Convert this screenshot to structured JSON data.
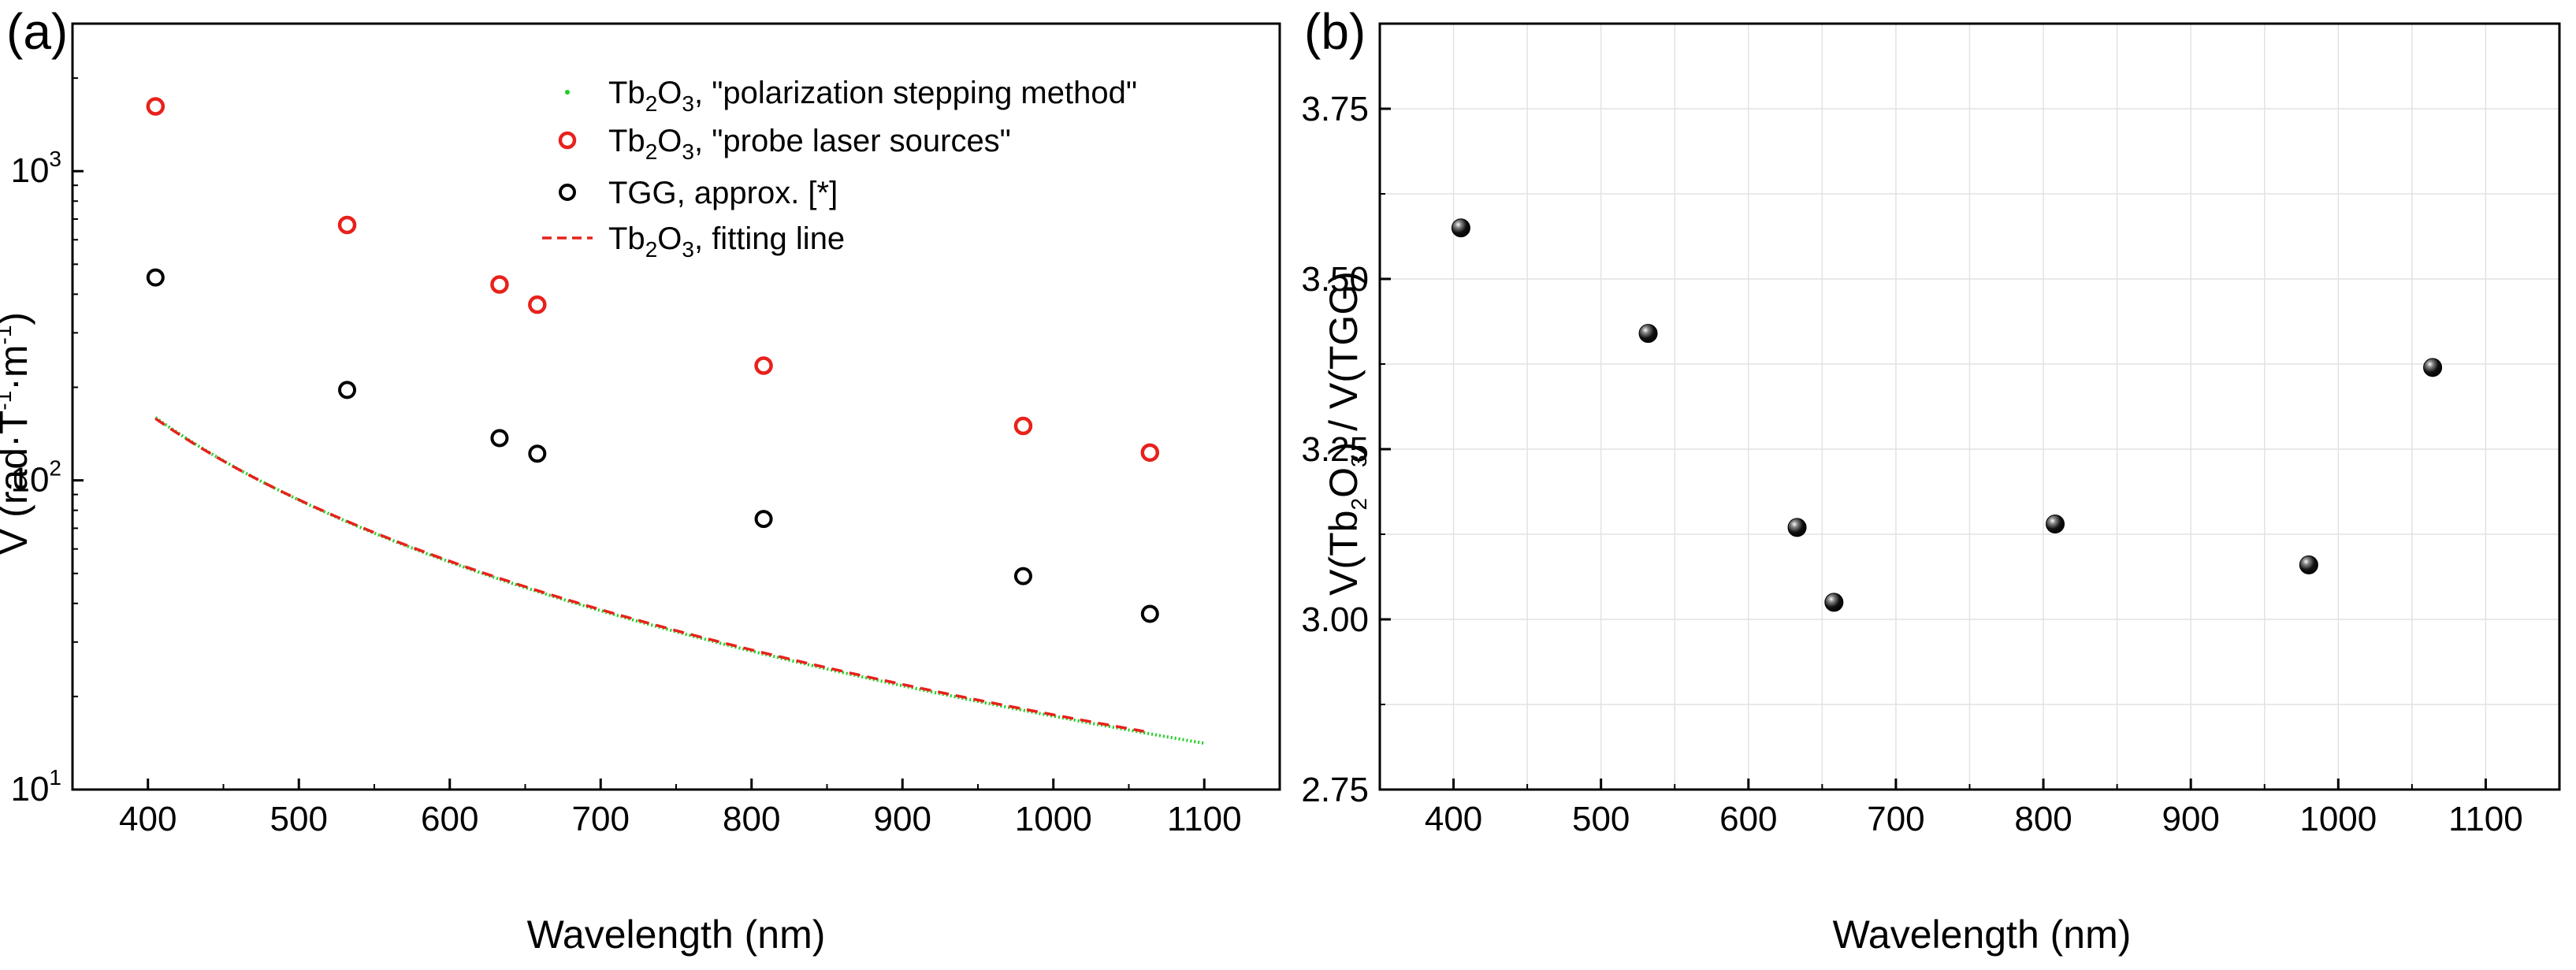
{
  "chart_data": [
    {
      "panel_label": "(a)",
      "type": "scatter",
      "xlabel": "Wavelength (nm)",
      "ylabel": {
        "main": "V (rad·T",
        "sup1": "-1",
        "mid": "·m",
        "sup2": "-1",
        "close": ")"
      },
      "xlim": [
        350,
        1150
      ],
      "xticks": [
        400,
        500,
        600,
        700,
        800,
        900,
        1000,
        1100
      ],
      "ylim": [
        10,
        3000
      ],
      "yscale": "log",
      "yticks": [
        {
          "v": 10,
          "base": "10",
          "exp": "1"
        },
        {
          "v": 100,
          "base": "10",
          "exp": "2"
        },
        {
          "v": 1000,
          "base": "10",
          "exp": "3"
        }
      ],
      "grid": false,
      "legend_position": "top-right",
      "series": [
        {
          "name": "Tb2O3, \"polarization stepping method\"",
          "label": {
            "pre": "Tb",
            "s1": "2",
            "mid": "O",
            "s2": "3",
            "post": ", \"polarization stepping method\""
          },
          "style": "green-dots",
          "color": "#22cc22",
          "curve": {
            "A": 16200000.0,
            "lambda0": 250,
            "x_from": 405,
            "x_to": 1100
          }
        },
        {
          "name": "Tb2O3, \"probe laser sources\"",
          "label": {
            "pre": "Tb",
            "s1": "2",
            "mid": "O",
            "s2": "3",
            "post": ", \"probe laser sources\""
          },
          "style": "open-circle",
          "color": "#e8211b",
          "x": [
            405,
            532,
            633,
            658,
            808,
            980,
            1064
          ],
          "y": [
            1620,
            670,
            430,
            370,
            235,
            150,
            123
          ]
        },
        {
          "name": "TGG, approx. [*]",
          "label": {
            "pre": "TGG, approx. [*]",
            "s1": "",
            "mid": "",
            "s2": "",
            "post": ""
          },
          "style": "open-circle",
          "color": "#000000",
          "x": [
            405,
            532,
            633,
            658,
            808,
            980,
            1064
          ],
          "y": [
            453,
            196,
            137,
            122,
            75,
            49,
            37
          ]
        },
        {
          "name": "Tb2O3, fitting line",
          "label": {
            "pre": "Tb",
            "s1": "2",
            "mid": "O",
            "s2": "3",
            "post": ", fitting line"
          },
          "style": "dashed-line",
          "color": "#e8211b",
          "curve": {
            "A": 16400000.0,
            "lambda0": 246,
            "x_from": 405,
            "x_to": 1064
          }
        }
      ]
    },
    {
      "panel_label": "(b)",
      "type": "scatter",
      "xlabel": "Wavelength (nm)",
      "ylabel": {
        "pre": "V(Tb",
        "s1": "2",
        "mid": "O",
        "s2": "3",
        "post": ") / V(TGG)"
      },
      "xlim": [
        350,
        1150
      ],
      "xticks": [
        400,
        500,
        600,
        700,
        800,
        900,
        1000,
        1100
      ],
      "ylim": [
        2.75,
        3.875
      ],
      "yticks": [
        "2.75",
        "3.00",
        "3.25",
        "3.50",
        "3.75"
      ],
      "grid": true,
      "series": [
        {
          "name": "V(Tb2O3) / V(TGG)",
          "style": "filled-sphere",
          "color": "#000000",
          "x": [
            405,
            532,
            633,
            658,
            808,
            980,
            1064
          ],
          "y": [
            3.575,
            3.42,
            3.135,
            3.025,
            3.14,
            3.08,
            3.37
          ]
        }
      ]
    }
  ]
}
